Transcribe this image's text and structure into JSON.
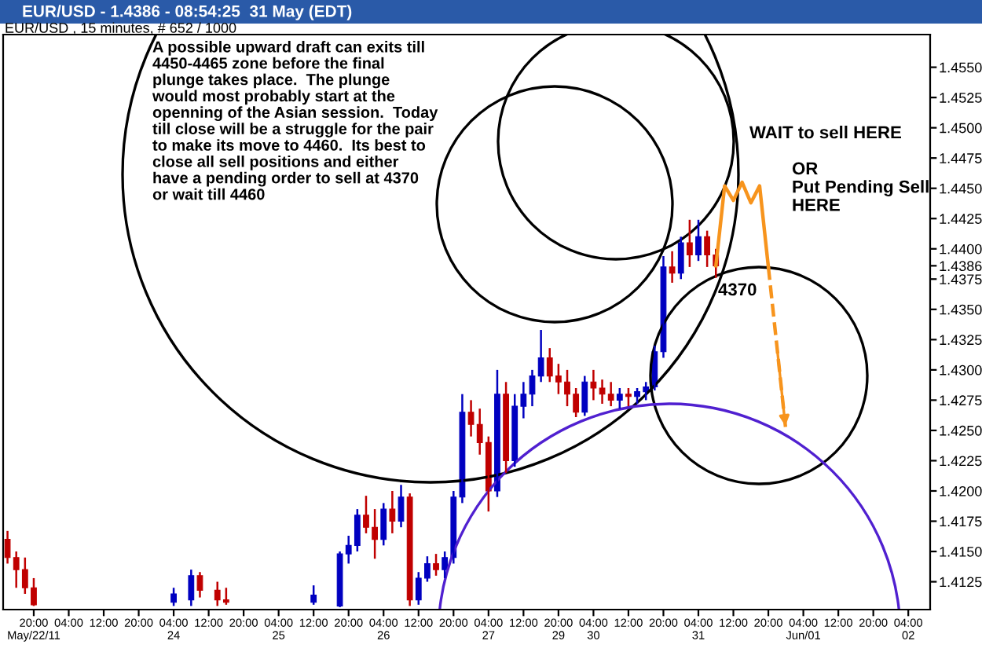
{
  "chart_data": {
    "type": "candlestick",
    "title": "EUR/USD - 1.4386 - 08:54:25  31 May (EDT)",
    "subtitle": "EUR/USD , 15 minutes, # 652 / 1000",
    "categories": [
      null,
      null,
      null,
      "20:00\nMay/22/11",
      null,
      null,
      null,
      "04:00",
      null,
      null,
      null,
      "12:00",
      null,
      null,
      null,
      "20:00",
      null,
      null,
      null,
      "04:00\n24",
      null,
      null,
      null,
      "12:00",
      null,
      null,
      null,
      "20:00",
      null,
      null,
      null,
      "04:00\n25",
      null,
      null,
      null,
      "12:00",
      null,
      null,
      null,
      "20:00",
      null,
      null,
      null,
      "04:00\n26",
      null,
      null,
      null,
      "12:00",
      null,
      null,
      null,
      "20:00",
      null,
      null,
      null,
      "04:00\n27",
      null,
      null,
      null,
      "12:00",
      null,
      null,
      null,
      "20:00\n29",
      null,
      null,
      null,
      "04:00\n30",
      null,
      null,
      null,
      "12:00",
      null,
      null,
      null,
      "20:00",
      null,
      null,
      null,
      "04:00\n31",
      null,
      null,
      null,
      "12:00",
      null,
      null,
      null,
      "20:00",
      null,
      null,
      null,
      "04:00\nJun/01",
      null,
      null,
      null,
      "12:00",
      null,
      null,
      null,
      "20:00",
      null,
      null,
      null,
      "04:00\n02",
      null,
      null
    ],
    "ohlc": [
      [
        1.416,
        1.4167,
        1.414,
        1.4145
      ],
      [
        1.4145,
        1.415,
        1.412,
        1.4135
      ],
      [
        1.4135,
        1.4145,
        1.4115,
        1.412
      ],
      [
        1.412,
        1.4128,
        1.4105,
        1.4106
      ],
      null,
      null,
      null,
      null,
      null,
      null,
      null,
      null,
      null,
      null,
      null,
      null,
      null,
      null,
      null,
      [
        1.4108,
        1.412,
        1.4105,
        1.4115
      ],
      null,
      [
        1.411,
        1.4135,
        1.4105,
        1.413
      ],
      [
        1.413,
        1.4133,
        1.4112,
        1.4118
      ],
      null,
      [
        1.4118,
        1.4125,
        1.4105,
        1.411
      ],
      [
        1.411,
        1.412,
        1.4106,
        1.4108
      ],
      null,
      null,
      null,
      null,
      null,
      null,
      null,
      null,
      null,
      [
        1.4108,
        1.4122,
        1.4106,
        1.4114
      ],
      null,
      null,
      [
        1.4105,
        1.415,
        1.4104,
        1.4148
      ],
      [
        1.4148,
        1.4163,
        1.414,
        1.4155
      ],
      [
        1.4155,
        1.4185,
        1.415,
        1.418
      ],
      [
        1.418,
        1.4196,
        1.4165,
        1.417
      ],
      [
        1.417,
        1.4185,
        1.4144,
        1.416
      ],
      [
        1.416,
        1.419,
        1.4155,
        1.4185
      ],
      [
        1.4185,
        1.42,
        1.4165,
        1.4175
      ],
      [
        1.4175,
        1.4205,
        1.417,
        1.4195
      ],
      [
        1.4195,
        1.4198,
        1.4105,
        1.411
      ],
      [
        1.411,
        1.4133,
        1.4106,
        1.4128
      ],
      [
        1.4128,
        1.4146,
        1.4125,
        1.414
      ],
      [
        1.414,
        1.4148,
        1.413,
        1.4135
      ],
      [
        1.4135,
        1.415,
        1.4128,
        1.4145
      ],
      [
        1.4145,
        1.42,
        1.414,
        1.4195
      ],
      [
        1.4195,
        1.428,
        1.419,
        1.4265
      ],
      [
        1.4265,
        1.4275,
        1.4245,
        1.4255
      ],
      [
        1.4255,
        1.4268,
        1.423,
        1.424
      ],
      [
        1.424,
        1.4245,
        1.4183,
        1.42
      ],
      [
        1.42,
        1.43,
        1.4195,
        1.428
      ],
      [
        1.428,
        1.429,
        1.4215,
        1.4225
      ],
      [
        1.4225,
        1.428,
        1.422,
        1.427
      ],
      [
        1.427,
        1.429,
        1.426,
        1.428
      ],
      [
        1.428,
        1.43,
        1.427,
        1.4295
      ],
      [
        1.4295,
        1.4333,
        1.429,
        1.431
      ],
      [
        1.431,
        1.4318,
        1.429,
        1.4295
      ],
      [
        1.4295,
        1.4305,
        1.428,
        1.429
      ],
      [
        1.429,
        1.43,
        1.427,
        1.428
      ],
      [
        1.428,
        1.4285,
        1.4261,
        1.4265
      ],
      [
        1.4265,
        1.4295,
        1.4262,
        1.429
      ],
      [
        1.429,
        1.43,
        1.4275,
        1.4285
      ],
      [
        1.4285,
        1.4292,
        1.4272,
        1.428
      ],
      [
        1.428,
        1.429,
        1.427,
        1.4275
      ],
      [
        1.4275,
        1.4285,
        1.4268,
        1.428
      ],
      [
        1.428,
        1.4285,
        1.427,
        1.4278
      ],
      [
        1.4278,
        1.4285,
        1.4272,
        1.4282
      ],
      [
        1.4282,
        1.429,
        1.4275,
        1.4286
      ],
      [
        1.4286,
        1.432,
        1.4283,
        1.4315
      ],
      [
        1.4315,
        1.4394,
        1.431,
        1.4385
      ],
      [
        1.4385,
        1.4398,
        1.4372,
        1.438
      ],
      [
        1.438,
        1.441,
        1.4375,
        1.4405
      ],
      [
        1.4405,
        1.4424,
        1.4385,
        1.4395
      ],
      [
        1.4395,
        1.4424,
        1.439,
        1.441
      ],
      [
        1.441,
        1.4415,
        1.4385,
        1.4395
      ],
      [
        1.4395,
        1.44,
        1.4376,
        1.4386
      ],
      null,
      null,
      null,
      null,
      null,
      null,
      null,
      null,
      null,
      null,
      null,
      null,
      null,
      null,
      null,
      null,
      null,
      null,
      null,
      null,
      null,
      null,
      null,
      null
    ],
    "colors": [
      "#c00000",
      "#c00000",
      "#c00000",
      "#c00000",
      null,
      null,
      null,
      null,
      null,
      null,
      null,
      null,
      null,
      null,
      null,
      null,
      null,
      null,
      null,
      "#0000c0",
      null,
      "#0000c0",
      "#c00000",
      null,
      "#c00000",
      "#c00000",
      null,
      null,
      null,
      null,
      null,
      null,
      null,
      null,
      null,
      "#0000c0",
      null,
      null,
      "#0000c0",
      "#0000c0",
      "#0000c0",
      "#c00000",
      "#c00000",
      "#0000c0",
      "#c00000",
      "#0000c0",
      "#c00000",
      "#0000c0",
      "#0000c0",
      "#c00000",
      "#0000c0",
      "#0000c0",
      "#0000c0",
      "#c00000",
      "#c00000",
      "#c00000",
      "#0000c0",
      "#c00000",
      "#0000c0",
      "#0000c0",
      "#0000c0",
      "#0000c0",
      "#c00000",
      "#c00000",
      "#c00000",
      "#c00000",
      "#0000c0",
      "#c00000",
      "#c00000",
      "#c00000",
      "#0000c0",
      "#c00000",
      "#0000c0",
      "#0000c0",
      "#0000c0",
      "#0000c0",
      "#c00000",
      "#0000c0",
      "#c00000",
      "#0000c0",
      "#c00000",
      "#c00000",
      null,
      null,
      null,
      null,
      null,
      null,
      null,
      null,
      null,
      null,
      null,
      null,
      null,
      null,
      null,
      null,
      null,
      null,
      null,
      null,
      null,
      null,
      null,
      null
    ],
    "series": [
      {
        "type": "line",
        "color": "#f7941d",
        "line_style": "solid",
        "values": [
          null,
          null,
          null,
          null,
          null,
          null,
          null,
          null,
          null,
          null,
          null,
          null,
          null,
          null,
          null,
          null,
          null,
          null,
          null,
          null,
          null,
          null,
          null,
          null,
          null,
          null,
          null,
          null,
          null,
          null,
          null,
          null,
          null,
          null,
          null,
          null,
          null,
          null,
          null,
          null,
          null,
          null,
          null,
          null,
          null,
          null,
          null,
          null,
          null,
          null,
          null,
          null,
          null,
          null,
          null,
          null,
          null,
          null,
          null,
          null,
          null,
          null,
          null,
          null,
          null,
          null,
          null,
          null,
          null,
          null,
          null,
          null,
          null,
          null,
          null,
          null,
          null,
          null,
          null,
          null,
          null,
          1.4386,
          1.4452,
          1.444,
          1.4455,
          1.4438,
          1.4452,
          1.4385,
          null,
          null,
          null,
          null,
          null,
          null,
          null,
          null,
          null,
          null,
          null,
          null,
          null,
          null,
          null,
          null,
          null,
          null
        ]
      },
      {
        "type": "line",
        "color": "#f7941d",
        "line_style": "dashed",
        "values": [
          null,
          null,
          null,
          null,
          null,
          null,
          null,
          null,
          null,
          null,
          null,
          null,
          null,
          null,
          null,
          null,
          null,
          null,
          null,
          null,
          null,
          null,
          null,
          null,
          null,
          null,
          null,
          null,
          null,
          null,
          null,
          null,
          null,
          null,
          null,
          null,
          null,
          null,
          null,
          null,
          null,
          null,
          null,
          null,
          null,
          null,
          null,
          null,
          null,
          null,
          null,
          null,
          null,
          null,
          null,
          null,
          null,
          null,
          null,
          null,
          null,
          null,
          null,
          null,
          null,
          null,
          null,
          null,
          null,
          null,
          null,
          null,
          null,
          null,
          null,
          null,
          null,
          null,
          null,
          null,
          null,
          null,
          null,
          null,
          null,
          null,
          null,
          1.4385,
          1.4318,
          1.425,
          null,
          null,
          null,
          null,
          null,
          null,
          null,
          null,
          null,
          null,
          null,
          null,
          null,
          null,
          null,
          null
        ]
      }
    ],
    "ylim": [
      1.4102,
      1.4577
    ],
    "yticks": [
      {
        "value": 1.4125,
        "label": "1.4125"
      },
      {
        "value": 1.415,
        "label": "1.4150"
      },
      {
        "value": 1.4175,
        "label": "1.4175"
      },
      {
        "value": 1.42,
        "label": "1.4200"
      },
      {
        "value": 1.4225,
        "label": "1.4225"
      },
      {
        "value": 1.425,
        "label": "1.4250"
      },
      {
        "value": 1.4275,
        "label": "1.4275"
      },
      {
        "value": 1.43,
        "label": "1.4300"
      },
      {
        "value": 1.4325,
        "label": "1.4325"
      },
      {
        "value": 1.435,
        "label": "1.4350"
      },
      {
        "value": 1.4375,
        "label": "1.4375"
      },
      {
        "value": 1.4386,
        "label": "1.4386"
      },
      {
        "value": 1.44,
        "label": "1.4400"
      },
      {
        "value": 1.4425,
        "label": "1.4425"
      },
      {
        "value": 1.445,
        "label": "1.4450"
      },
      {
        "value": 1.4475,
        "label": "1.4475"
      },
      {
        "value": 1.45,
        "label": "1.4500"
      },
      {
        "value": 1.4525,
        "label": "1.4525"
      },
      {
        "value": 1.455,
        "label": "1.4550"
      }
    ],
    "annotations": [
      "A possible upward draft can exits till\n4450-4465 zone before the final\nplunge takes place.  The plunge\nwould most probably start at the\nopenning of the Asian session.  Today\ntill close will be a struggle for the pair\nto make its move to 4460.  Its best to\nclose all sell positions and either\nhave a pending order to sell at 4370\nor wait till 4460",
      "WAIT to sell HERE",
      "OR\nPut Pending Sell\nHERE",
      "4370"
    ]
  }
}
